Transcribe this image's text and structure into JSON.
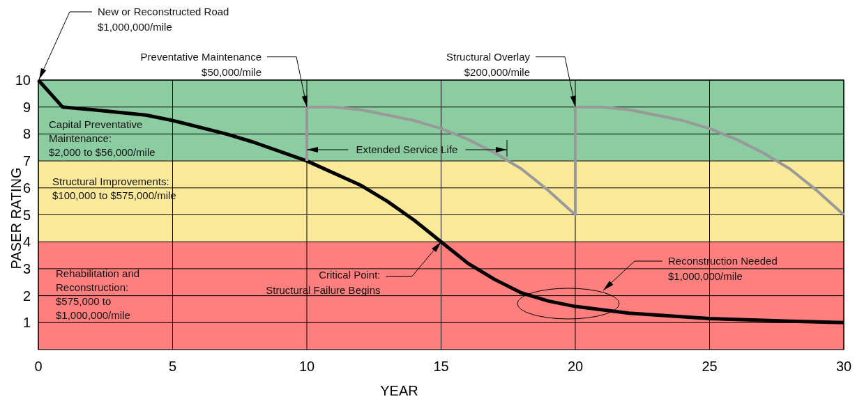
{
  "chart_data": {
    "type": "line",
    "xlabel": "YEAR",
    "ylabel": "PASER RATING",
    "xlim": [
      0,
      30
    ],
    "xticks": [
      0,
      5,
      10,
      15,
      20,
      25,
      30
    ],
    "ylim": [
      0,
      10
    ],
    "yticks": [
      1,
      2,
      3,
      4,
      5,
      6,
      7,
      8,
      9,
      10
    ],
    "grid": true,
    "marker": "none",
    "series": [
      {
        "color": "#000000",
        "x": [
          0,
          0.9,
          2,
          4,
          5,
          7,
          8,
          10,
          12,
          13,
          14,
          15,
          16,
          17,
          18,
          19,
          20,
          22,
          25,
          28,
          30
        ],
        "values": [
          10,
          9,
          8.9,
          8.7,
          8.5,
          8.0,
          7.7,
          7.0,
          6.1,
          5.5,
          4.8,
          4.0,
          3.2,
          2.6,
          2.1,
          1.8,
          1.6,
          1.35,
          1.15,
          1.05,
          1.0
        ]
      },
      {
        "color": "#999999",
        "x": [
          10,
          10,
          11,
          12,
          13,
          14,
          15,
          16,
          17,
          18,
          19,
          20,
          20,
          21,
          22,
          23,
          24,
          25,
          26,
          27,
          28,
          29,
          30
        ],
        "values": [
          7.0,
          9,
          9.0,
          8.9,
          8.7,
          8.5,
          8.2,
          7.8,
          7.3,
          6.7,
          5.9,
          5.0,
          9,
          9.0,
          8.9,
          8.7,
          8.5,
          8.2,
          7.8,
          7.3,
          6.7,
          5.9,
          5.0
        ]
      }
    ],
    "bands": [
      {
        "axis": "y",
        "from": 7,
        "to": 10,
        "color": "#8bcca0",
        "label": "Capital Preventative\nMaintenance:\n$2,000 to $56,000/mile"
      },
      {
        "axis": "y",
        "from": 4,
        "to": 7,
        "color": "#fbe99a",
        "label": "Structural Improvements:\n$100,000 to $575,000/mile"
      },
      {
        "axis": "y",
        "from": 0,
        "to": 4,
        "color": "#ff7f7f",
        "label": "Rehabilitation and\nReconstruction:\n$575,000 to\n$1,000,000/mile"
      }
    ],
    "annotations": [
      {
        "text": "New or Reconstructed Road\n$1,000,000/mile",
        "x": 0,
        "y": 10
      },
      {
        "text": "Preventative Maintenance\n$50,000/mile",
        "x": 10,
        "y": 9
      },
      {
        "text": "Structural Overlay\n$200,000/mile",
        "x": 20,
        "y": 9
      },
      "Extended Service Life",
      {
        "text": "Critical Point:\nStructural Failure Begins",
        "x": 15,
        "y": 4
      },
      "Reconstruction Needed\n$1,000,000/mile"
    ]
  }
}
